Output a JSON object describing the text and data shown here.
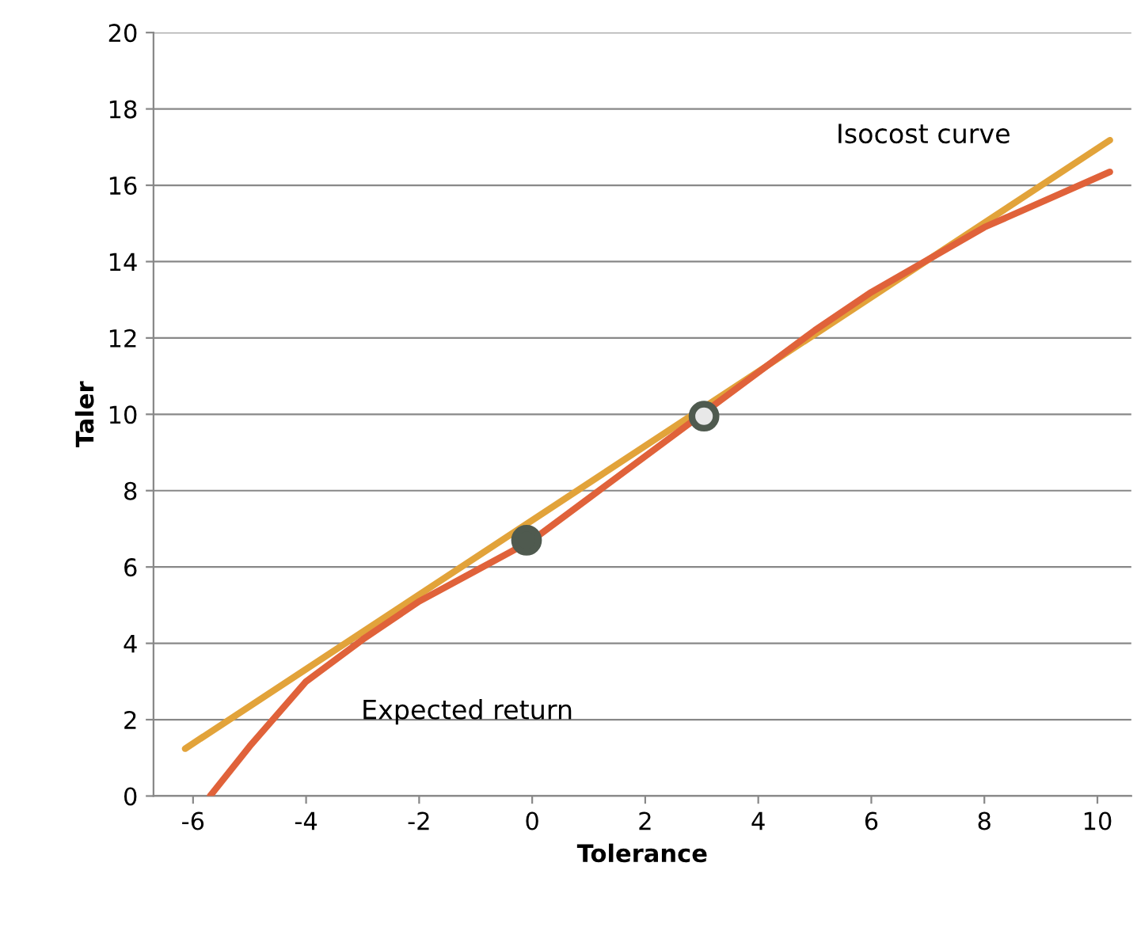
{
  "chart_data": {
    "type": "line",
    "xlabel": "Tolerance",
    "ylabel": "Taler",
    "xlim": [
      -6.7,
      10.6
    ],
    "xticks": [
      -6,
      -4,
      -2,
      0,
      2,
      4,
      6,
      8,
      10
    ],
    "ylim": [
      0,
      20
    ],
    "yticks": [
      0,
      2,
      4,
      6,
      8,
      10,
      12,
      14,
      16,
      18,
      20
    ],
    "grid": "y",
    "legend": false,
    "series": [
      {
        "name": "Isocost curve",
        "color": "#e2a33a",
        "x": [
          -6.14,
          10.22
        ],
        "values": [
          1.24,
          17.18
        ],
        "marker": "none"
      },
      {
        "name": "Expected return",
        "color": "#e0623a",
        "x": [
          -5.7,
          -5,
          -4,
          -3,
          -2,
          -1,
          0,
          1,
          3,
          5,
          6,
          8,
          10.22
        ],
        "values": [
          0,
          1.3,
          3.0,
          4.1,
          5.1,
          5.9,
          6.7,
          7.8,
          10,
          12.2,
          13.2,
          14.9,
          16.35
        ],
        "marker": "none"
      },
      {
        "type": "scatter",
        "color": "#4f5a4f",
        "x": [
          -0.1,
          3.04
        ],
        "values": [
          6.7,
          9.95
        ],
        "colors": [
          "#4f5a4f",
          "#e8e8e8"
        ],
        "marker": "circle"
      }
    ]
  }
}
